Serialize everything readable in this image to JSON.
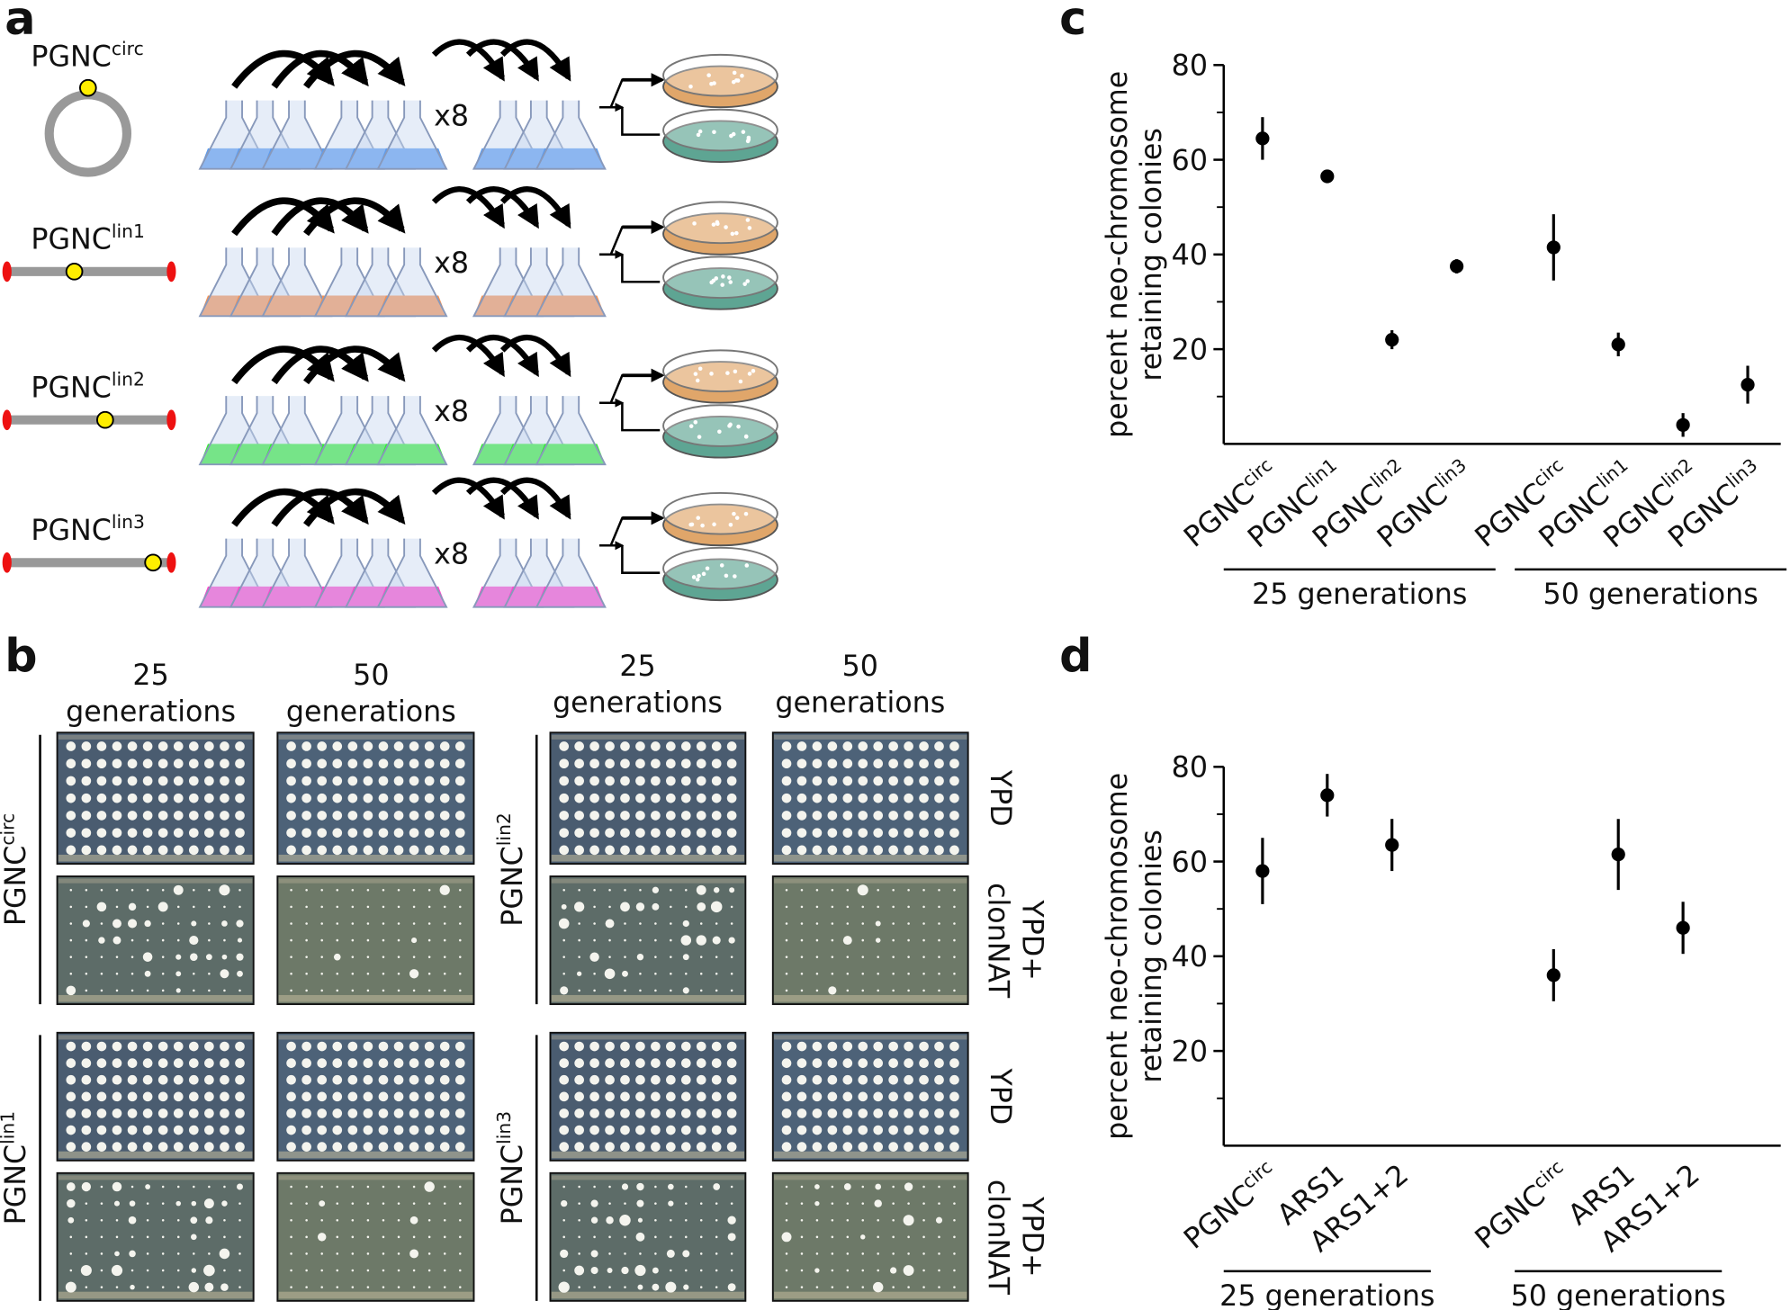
{
  "panel_labels": [
    "a",
    "b",
    "c",
    "d"
  ],
  "panel_a": {
    "constructs": [
      {
        "name": "PGNC",
        "sup": "circ"
      },
      {
        "name": "PGNC",
        "sup": "lin1"
      },
      {
        "name": "PGNC",
        "sup": "lin2"
      },
      {
        "name": "PGNC",
        "sup": "lin3"
      }
    ],
    "repeat": "x8"
  },
  "panel_b": {
    "columns": [
      [
        "25",
        "generations"
      ],
      [
        "50",
        "generations"
      ],
      [
        "25",
        "generations"
      ],
      [
        "50",
        "generations"
      ]
    ],
    "strains": [
      {
        "name": "PGNC",
        "sup": "circ"
      },
      {
        "name": "PGNC",
        "sup": "lin1"
      },
      {
        "name": "PGNC",
        "sup": "lin2"
      },
      {
        "name": "PGNC",
        "sup": "lin3"
      }
    ],
    "media": [
      [
        "YPD"
      ],
      [
        "YPD+",
        "clonNAT"
      ]
    ]
  },
  "chart_data": [
    {
      "type": "point",
      "y_label": [
        "percent neo-chromosome",
        "retaining colonies"
      ],
      "categories": [
        "PGNC",
        "PGNC",
        "PGNC",
        "PGNC",
        "PGNC",
        "PGNC",
        "PGNC",
        "PGNC"
      ],
      "category_superscripts": [
        "circ",
        "lin1",
        "lin2",
        "lin3",
        "circ",
        "lin1",
        "lin2",
        "lin3"
      ],
      "groups": [
        "25 generations",
        "50 generations"
      ],
      "values": [
        64.5,
        56.5,
        22,
        37.5,
        41.5,
        21,
        4,
        12.5
      ],
      "errors": [
        4.5,
        1,
        2,
        1.5,
        7,
        2.5,
        2.5,
        4
      ],
      "color": "#000000",
      "ylim": [
        0,
        80
      ],
      "yticks": [
        20,
        40,
        60,
        80
      ],
      "yminor": [
        10,
        30,
        50,
        70
      ]
    },
    {
      "type": "point",
      "y_label": [
        "percent neo-chromosome",
        "retaining colonies"
      ],
      "categories": [
        "PGNC",
        "ARS1",
        "ARS1+2",
        "PGNC",
        "ARS1",
        "ARS1+2"
      ],
      "category_superscripts": [
        "circ",
        null,
        null,
        "circ",
        null,
        null
      ],
      "groups": [
        "25 generations",
        "50 generations"
      ],
      "values": [
        58,
        74,
        63.5,
        36,
        61.5,
        46
      ],
      "errors": [
        7,
        4.5,
        5.5,
        5.5,
        7.5,
        5.5
      ],
      "color": "#000000",
      "ylim": [
        0,
        80
      ],
      "yticks": [
        20,
        40,
        60,
        80
      ],
      "yminor": [
        10,
        30,
        50,
        70
      ]
    }
  ]
}
